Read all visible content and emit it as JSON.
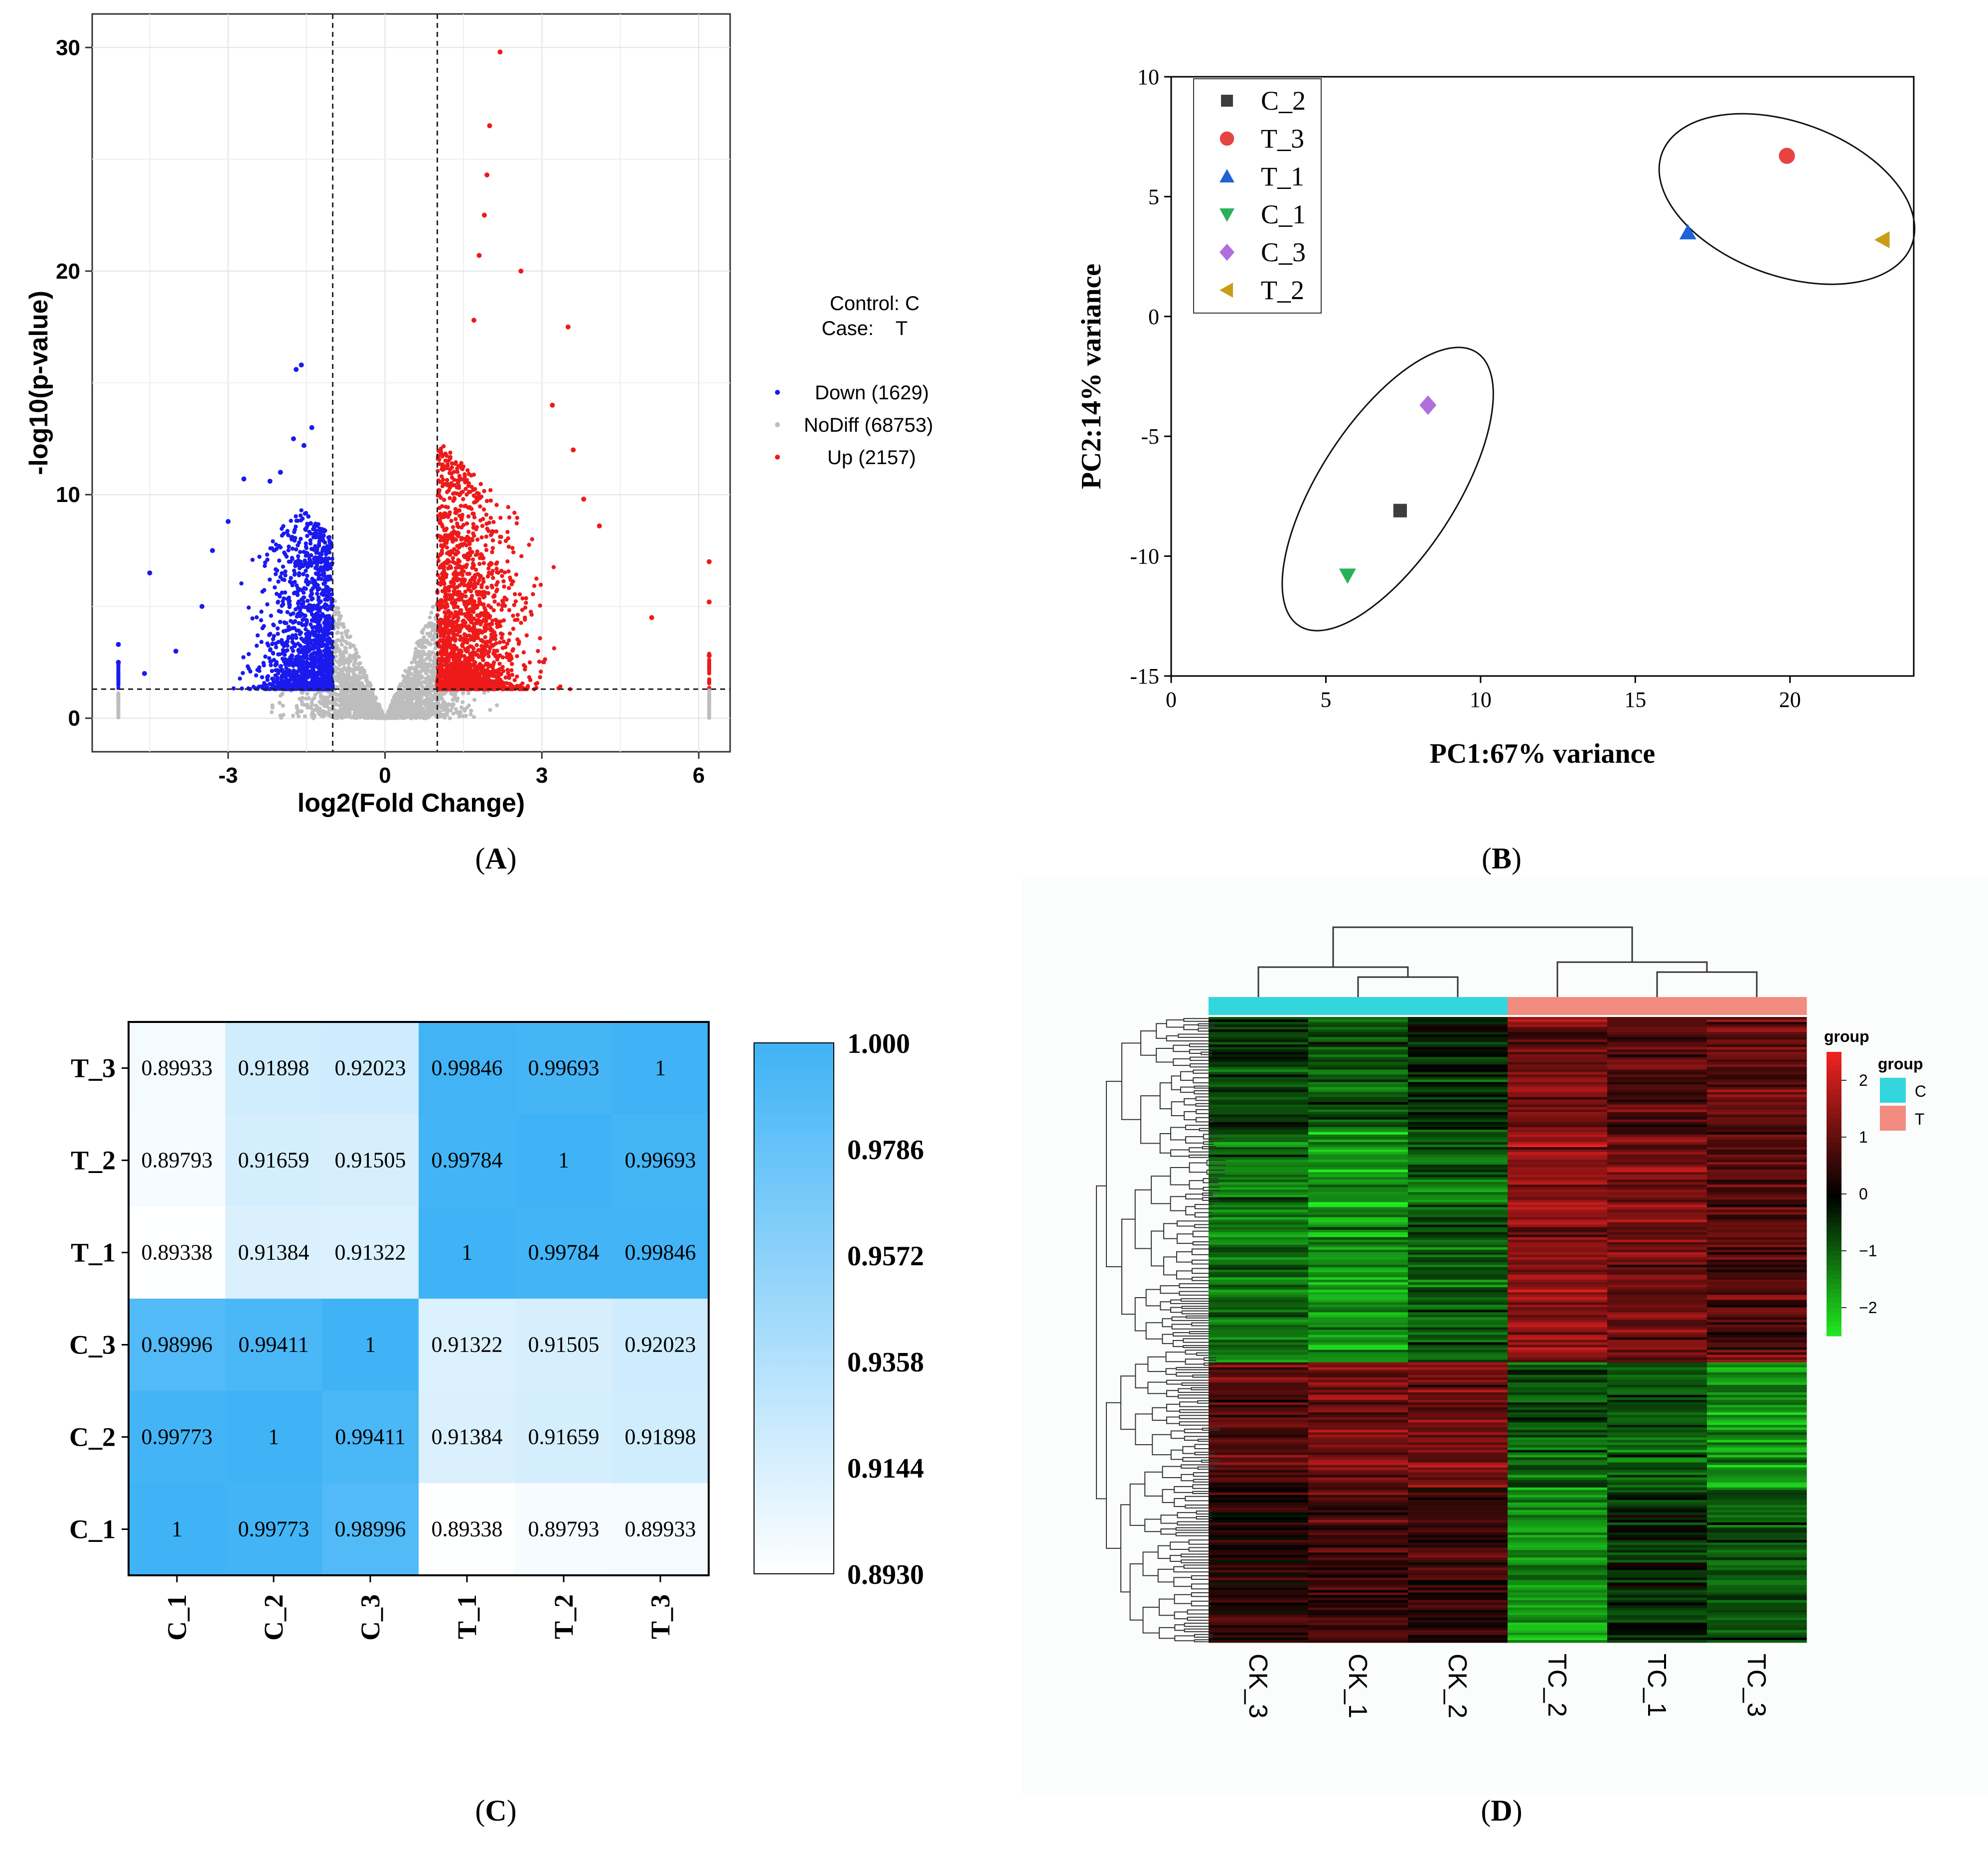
{
  "panels": {
    "A": {
      "letter": "A"
    },
    "B": {
      "letter": "B"
    },
    "C": {
      "letter": "C"
    },
    "D": {
      "letter": "D"
    }
  },
  "chart_data": [
    {
      "id": "A",
      "type": "scatter",
      "title": "",
      "xlabel": "log2(Fold Change)",
      "ylabel": "-log10(p-value)",
      "xlim": [
        -5.6,
        6.6
      ],
      "ylim": [
        -1.5,
        31.5
      ],
      "xticks": [
        "-3",
        "0",
        "3",
        "6"
      ],
      "xtick_values": [
        -3,
        0,
        3,
        6
      ],
      "yticks": [
        "0",
        "10",
        "20",
        "30"
      ],
      "ytick_values": [
        0,
        10,
        20,
        30
      ],
      "thresholds": {
        "log2fc": [
          -1,
          1
        ],
        "neg_log10_p": 1.3
      },
      "legend_header": {
        "control": "Control: C",
        "case": "Case:    T"
      },
      "legend": [
        {
          "label": "Down (1629)",
          "color": "#1a1aee"
        },
        {
          "label": "NoDiff (68753)",
          "color": "#bdbdbd"
        },
        {
          "label": "Up (2157)",
          "color": "#ee1a1a"
        }
      ],
      "series": [
        {
          "name": "Down",
          "count": 1629,
          "color": "#1a1aee",
          "highlight_points": [
            [
              -1.7,
              15.6
            ],
            [
              -1.6,
              15.8
            ],
            [
              -1.4,
              13.0
            ],
            [
              -1.75,
              12.5
            ],
            [
              -1.55,
              12.2
            ],
            [
              -2.0,
              11.0
            ],
            [
              -2.7,
              10.7
            ],
            [
              -2.2,
              10.6
            ],
            [
              -3.0,
              8.8
            ],
            [
              -3.3,
              7.5
            ],
            [
              -4.5,
              6.5
            ],
            [
              -3.5,
              5.0
            ],
            [
              -4.0,
              3.0
            ],
            [
              -4.6,
              2.0
            ],
            [
              -5.1,
              3.3
            ],
            [
              -5.1,
              2.5
            ]
          ]
        },
        {
          "name": "NoDiff",
          "count": 68753,
          "color": "#bdbdbd"
        },
        {
          "name": "Up",
          "count": 2157,
          "color": "#ee1a1a",
          "highlight_points": [
            [
              2.2,
              29.8
            ],
            [
              2.0,
              26.5
            ],
            [
              1.95,
              24.3
            ],
            [
              1.9,
              22.5
            ],
            [
              1.8,
              20.7
            ],
            [
              2.6,
              20.0
            ],
            [
              1.7,
              17.8
            ],
            [
              3.5,
              17.5
            ],
            [
              3.2,
              14.0
            ],
            [
              3.6,
              12.0
            ],
            [
              3.8,
              9.8
            ],
            [
              4.1,
              8.6
            ],
            [
              5.1,
              4.5
            ],
            [
              6.2,
              7.0
            ],
            [
              6.2,
              5.2
            ],
            [
              6.2,
              2.8
            ]
          ]
        }
      ]
    },
    {
      "id": "B",
      "type": "scatter",
      "xlabel": "PC1:67% variance",
      "ylabel": "PC2:14% variance",
      "xlim": [
        0,
        24
      ],
      "ylim": [
        -15,
        10
      ],
      "xticks": [
        "0",
        "5",
        "10",
        "15",
        "20"
      ],
      "xtick_values": [
        0,
        5,
        10,
        15,
        20
      ],
      "yticks": [
        "10",
        "5",
        "0",
        "-5",
        "-10",
        "-15"
      ],
      "ytick_values": [
        10,
        5,
        0,
        -5,
        -10,
        -15
      ],
      "legend_placement": "top-left",
      "series": [
        {
          "name": "C_2",
          "marker": "square",
          "color": "#3d3d3d",
          "x": 7.4,
          "y": -8.1
        },
        {
          "name": "T_3",
          "marker": "circle",
          "color": "#e84343",
          "x": 19.9,
          "y": 6.7
        },
        {
          "name": "T_1",
          "marker": "triangle-up",
          "color": "#1f63d6",
          "x": 16.7,
          "y": 3.5
        },
        {
          "name": "C_1",
          "marker": "triangle-down",
          "color": "#2bb05a",
          "x": 5.7,
          "y": -10.8
        },
        {
          "name": "C_3",
          "marker": "diamond",
          "color": "#b16fdc",
          "x": 8.3,
          "y": -3.7
        },
        {
          "name": "T_2",
          "marker": "triangle-left",
          "color": "#c99d1a",
          "x": 23.0,
          "y": 3.2
        }
      ],
      "ellipses": [
        {
          "group": "C",
          "cx": 7.0,
          "cy": -7.2,
          "rx": 2.2,
          "ry": 6.8,
          "angle": 33
        },
        {
          "group": "T",
          "cx": 19.9,
          "cy": 4.9,
          "rx": 4.3,
          "ry": 3.2,
          "angle": 20
        }
      ]
    },
    {
      "id": "C",
      "type": "heatmap",
      "rows": [
        "T_3",
        "T_2",
        "T_1",
        "C_3",
        "C_2",
        "C_1"
      ],
      "cols": [
        "C_1",
        "C_2",
        "C_3",
        "T_1",
        "T_2",
        "T_3"
      ],
      "values": [
        [
          "0.89933",
          "0.91898",
          "0.92023",
          "0.99846",
          "0.99693",
          "1"
        ],
        [
          "0.89793",
          "0.91659",
          "0.91505",
          "0.99784",
          "1",
          "0.99693"
        ],
        [
          "0.89338",
          "0.91384",
          "0.91322",
          "1",
          "0.99784",
          "0.99846"
        ],
        [
          "0.98996",
          "0.99411",
          "1",
          "0.91322",
          "0.91505",
          "0.92023"
        ],
        [
          "0.99773",
          "1",
          "0.99411",
          "0.91384",
          "0.91659",
          "0.91898"
        ],
        [
          "1",
          "0.99773",
          "0.98996",
          "0.89338",
          "0.89793",
          "0.89933"
        ]
      ],
      "color_scale": {
        "min": 0.893,
        "max": 1.0,
        "low": "#ffffff",
        "high": "#3fb3f6"
      },
      "colorbar_ticks": [
        "1.000",
        "0.9786",
        "0.9572",
        "0.9358",
        "0.9144",
        "0.8930"
      ]
    },
    {
      "id": "D",
      "type": "heatmap",
      "cols": [
        "CK_3",
        "CK_1",
        "CK_2",
        "TC_2",
        "TC_1",
        "TC_3"
      ],
      "col_groups": [
        "C",
        "C",
        "C",
        "T",
        "T",
        "T"
      ],
      "group_title": "group",
      "groups": [
        {
          "name": "C",
          "color": "#33d6dc"
        },
        {
          "name": "T",
          "color": "#f28b80"
        }
      ],
      "color_scale": {
        "min": -2.5,
        "max": 2.5,
        "low": "#22ee22",
        "mid": "#000000",
        "high": "#ee2222"
      },
      "colorbar_title": "group",
      "colorbar_ticks": [
        "2",
        "1",
        "0",
        "−1",
        "−2"
      ],
      "colorbar_tick_values": [
        2,
        1,
        0,
        -1,
        -2
      ],
      "pattern": "upper block: C down / T up; lower block: C up / T down"
    }
  ]
}
